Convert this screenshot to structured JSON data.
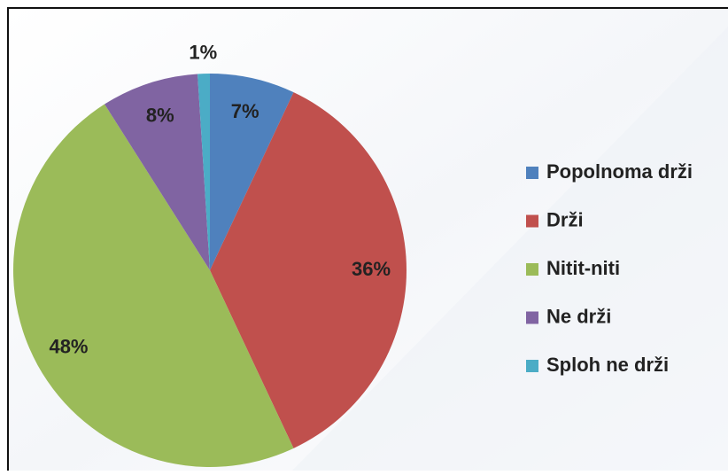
{
  "chart_data": {
    "type": "pie",
    "categories": [
      "Popolnoma drži",
      "Drži",
      "Nitit-niti",
      "Ne drži",
      "Sploh ne drži"
    ],
    "values": [
      7,
      36,
      48,
      8,
      1
    ],
    "value_labels": [
      "7%",
      "36%",
      "48%",
      "8%",
      "1%"
    ],
    "colors": [
      "#4f81bd",
      "#c0504d",
      "#9bbb59",
      "#8064a2",
      "#4bacc6"
    ],
    "legend": "right"
  }
}
